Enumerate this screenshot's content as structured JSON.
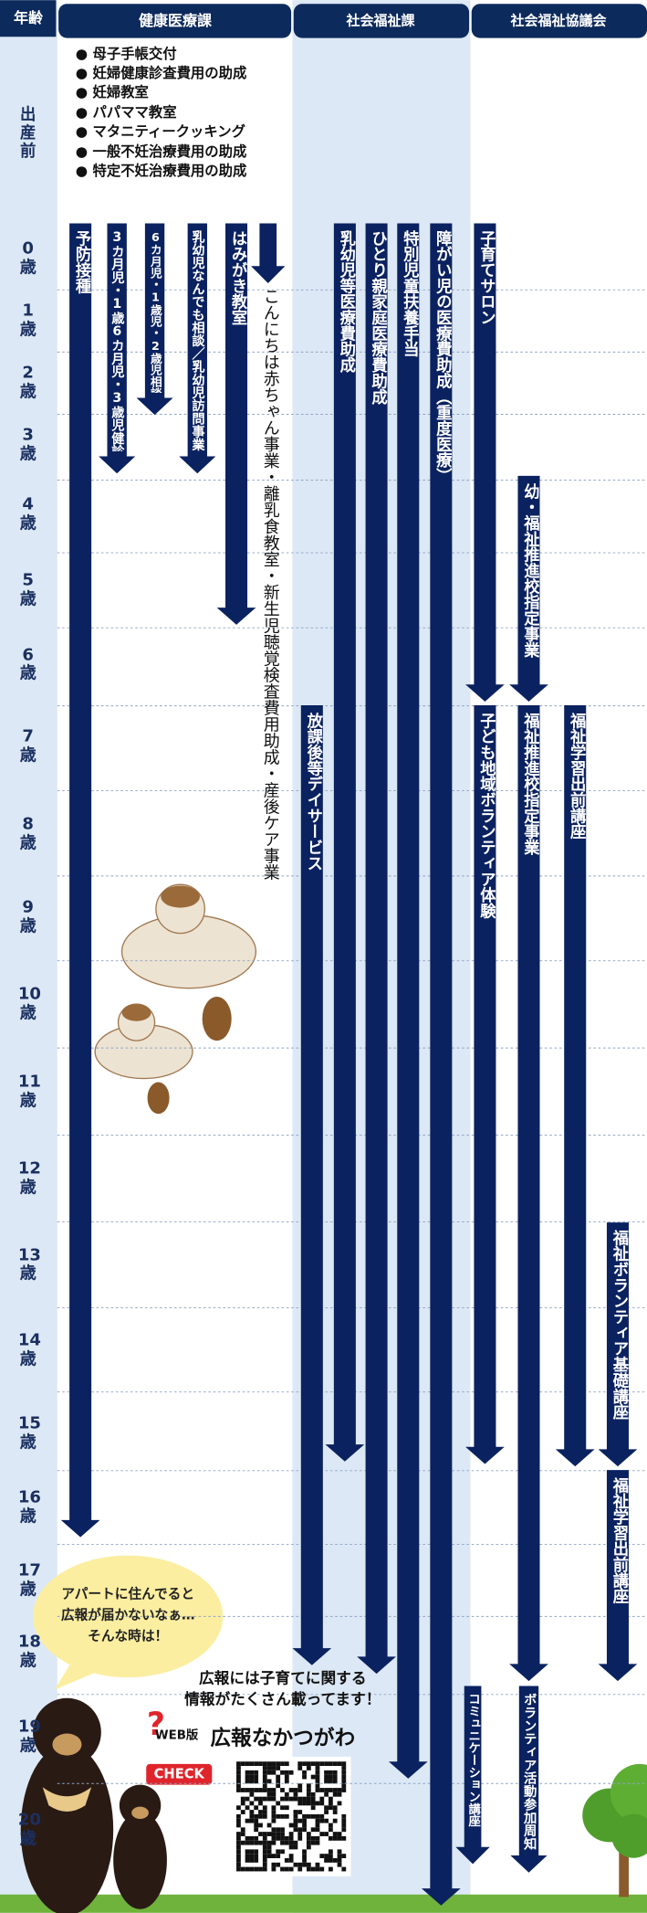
{
  "header": {
    "age": "年齢",
    "columns": [
      "健康医療課",
      "社会福祉課",
      "社会福祉協議会"
    ]
  },
  "ages": [
    "出産前",
    "0歳",
    "1歳",
    "2歳",
    "3歳",
    "4歳",
    "5歳",
    "6歳",
    "7歳",
    "8歳",
    "9歳",
    "10歳",
    "11歳",
    "12歳",
    "13歳",
    "14歳",
    "15歳",
    "16歳",
    "17歳",
    "18歳",
    "19歳",
    "20歳"
  ],
  "health": {
    "list": [
      "母子手帳交付",
      "妊婦健康診査費用の助成",
      "妊婦教室",
      "パパママ教室",
      "マタニティークッキング",
      "一般不妊治療費用の助成",
      "特定不妊治療費用の助成"
    ],
    "arrows": [
      "予防接種",
      "3カ月児・1歳6カ月児・3歳児健診",
      "6カ月児・1歳児・2歳児相談",
      "乳幼児なんでも相談／乳幼児訪問事業",
      "はみがき教室",
      "こんにちは赤ちゃん事業・離乳食教室・新生児聴覚検査費用助成・産後ケア事業"
    ]
  },
  "social": {
    "arrows": [
      "放課後等デイサービス",
      "乳幼児等医療費助成",
      "ひとり親家庭医療費助成",
      "特別児童扶養手当",
      "障がい児の医療費助成（重度医療）"
    ]
  },
  "council": {
    "arrows": [
      "子育てサロン",
      "幼・福祉推進校指定事業",
      "子ども地域ボランティア体験",
      "福祉推進校指定事業",
      "福祉学習出前講座",
      "福祉ボランティア基礎講座",
      "福祉学習出前講座",
      "コミュニケーション講座",
      "ボランティア活動参加周知"
    ]
  },
  "bubble": [
    "アパートに住んでると",
    "広報が届かないなぁ…",
    "そんな時は！"
  ],
  "promo": {
    "lines": [
      "広報には子育てに関する",
      "情報がたくさん載ってます！"
    ],
    "web": "WEB版",
    "name": "広報なかつがわ",
    "check": "CHECK"
  }
}
